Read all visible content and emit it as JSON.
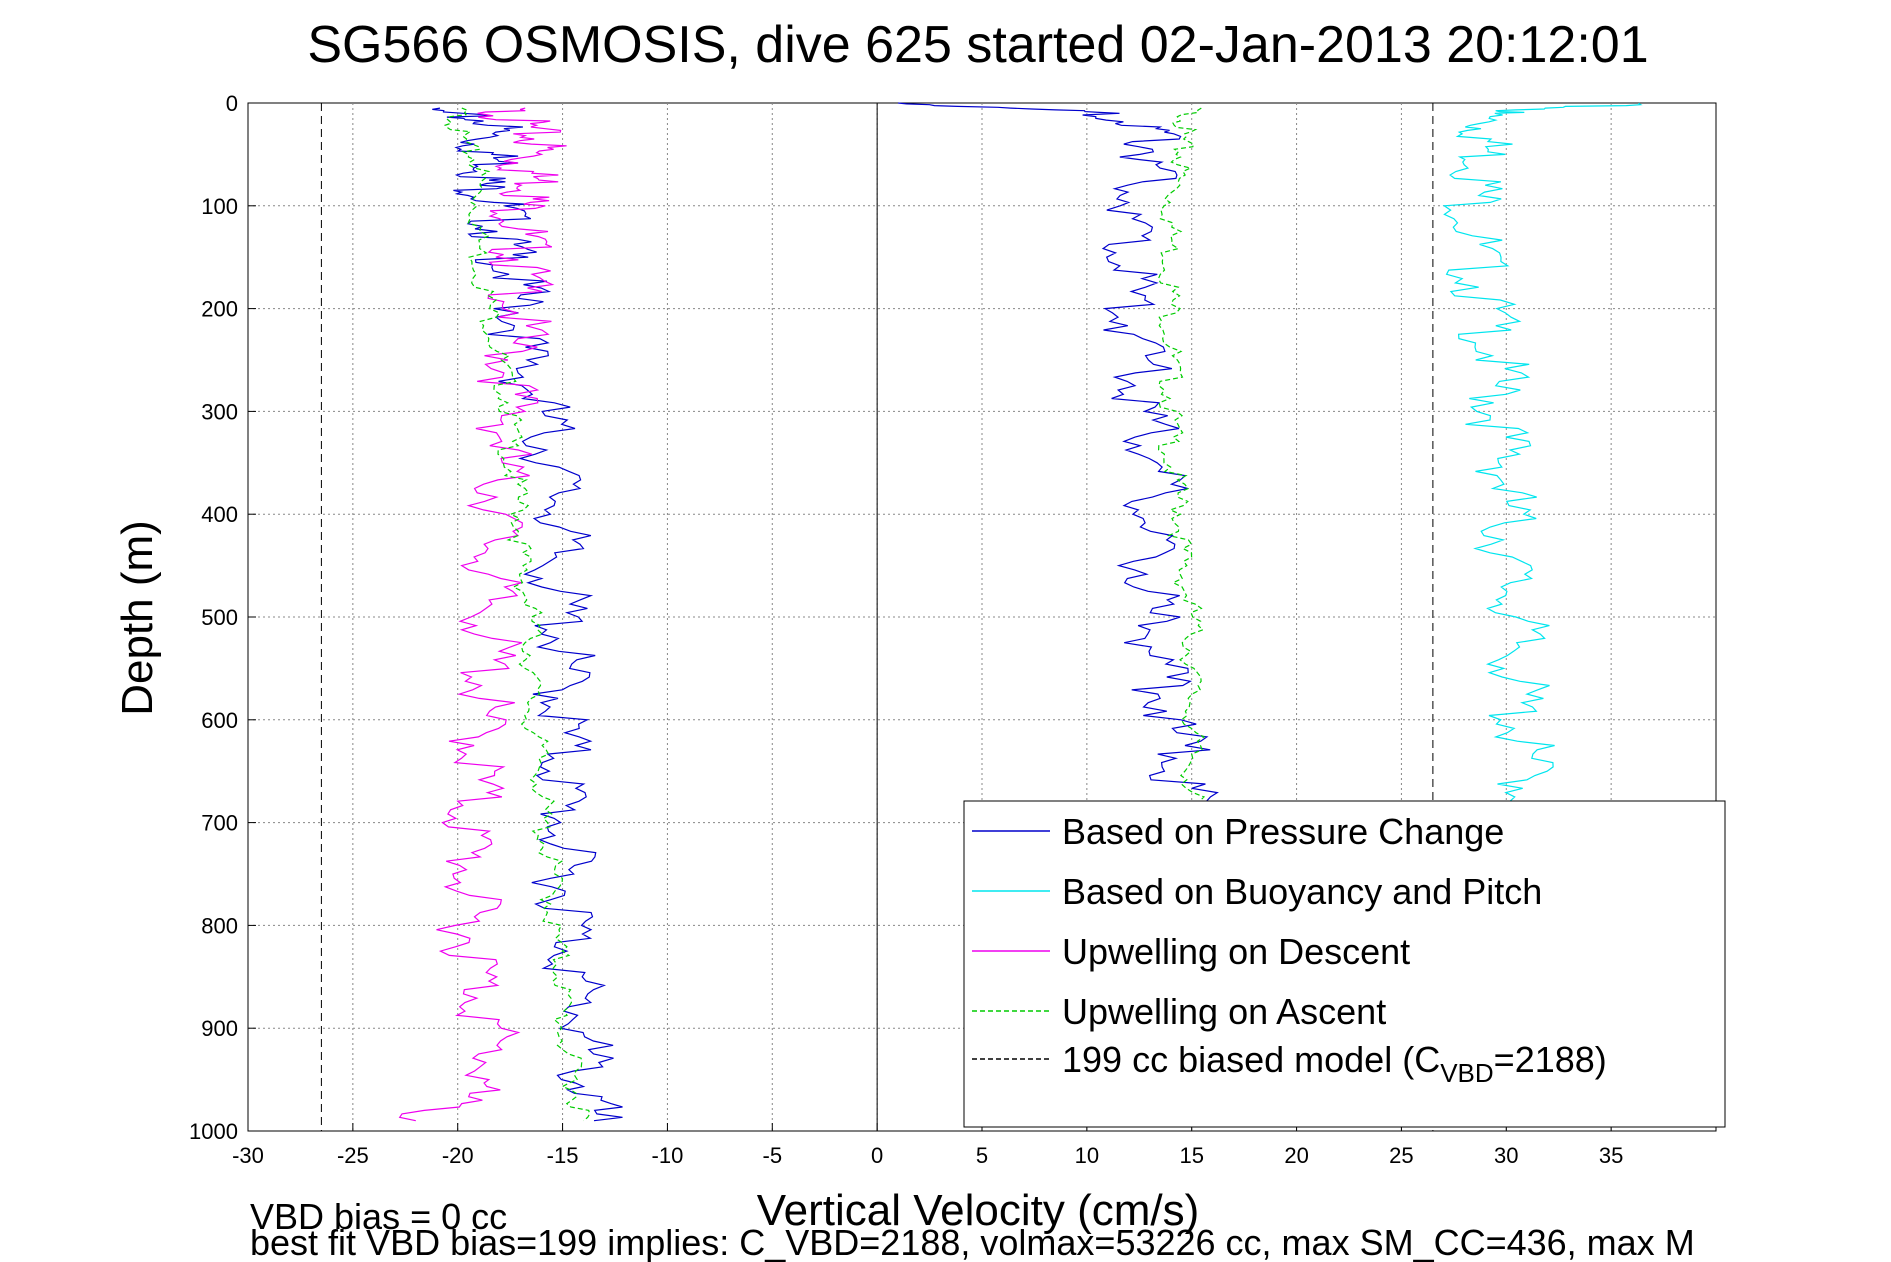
{
  "chart_data": {
    "type": "line",
    "title": "SG566 OSMOSIS, dive 625 started 02-Jan-2013 20:12:01",
    "xlabel": "Vertical Velocity (cm/s)",
    "ylabel": "Depth (m)",
    "xlim": [
      -30,
      40
    ],
    "ylim": [
      0,
      1000
    ],
    "y_reversed": true,
    "xticks": [
      -30,
      -25,
      -20,
      -15,
      -10,
      -5,
      0,
      5,
      10,
      15,
      20,
      25,
      30,
      35
    ],
    "yticks": [
      0,
      100,
      200,
      300,
      400,
      500,
      600,
      700,
      800,
      900,
      1000
    ],
    "grid": true,
    "legend_position": "bottom-right",
    "series": [
      {
        "name": "Based on Pressure Change",
        "color": "#0000cc",
        "style": "solid",
        "segment": "descent",
        "depth": [
          5,
          20,
          40,
          60,
          80,
          100,
          130,
          160,
          200,
          250,
          300,
          350,
          400,
          450,
          500,
          550,
          600,
          650,
          700,
          750,
          800,
          850,
          900,
          950,
          990
        ],
        "values": [
          -22,
          -18,
          -19,
          -18,
          -19,
          -18,
          -18,
          -17.5,
          -17,
          -17,
          -16,
          -15.5,
          -15,
          -15.5,
          -15,
          -15,
          -15,
          -15,
          -15,
          -15,
          -14.5,
          -14.5,
          -14,
          -14,
          -13.5
        ]
      },
      {
        "name": "Based on Pressure Change",
        "color": "#0000cc",
        "style": "solid",
        "segment": "ascent",
        "depth": [
          990,
          950,
          900,
          850,
          800,
          750,
          700,
          650,
          600,
          550,
          500,
          450,
          400,
          350,
          300,
          250,
          200,
          150,
          100,
          60,
          30,
          10,
          0
        ],
        "values": [
          15,
          15,
          15,
          15,
          15,
          15,
          15,
          14.5,
          14,
          13.5,
          13,
          13,
          13,
          13.5,
          12.5,
          12.5,
          12,
          12,
          12,
          13,
          13.5,
          11,
          1
        ]
      },
      {
        "name": "Based on Buoyancy and Pitch",
        "color": "#00e5ee",
        "style": "solid",
        "segment": "descent",
        "depth": [
          0,
          10,
          30,
          60,
          100,
          150,
          200,
          250,
          300,
          350,
          400,
          450,
          500,
          550,
          600,
          650,
          700
        ],
        "values": [
          36,
          29,
          29,
          29,
          28.5,
          28.5,
          29,
          29.5,
          29.5,
          30,
          30,
          30,
          30.5,
          30.5,
          30.5,
          31,
          31
        ]
      },
      {
        "name": "Upwelling on Descent",
        "color": "#ee00ee",
        "style": "solid",
        "depth": [
          5,
          20,
          40,
          60,
          80,
          100,
          130,
          160,
          200,
          250,
          300,
          350,
          400,
          450,
          500,
          550,
          600,
          650,
          700,
          750,
          800,
          850,
          900,
          950,
          990
        ],
        "values": [
          -18,
          -17,
          -16,
          -17,
          -16,
          -17,
          -17,
          -17,
          -17,
          -17.5,
          -17.5,
          -18,
          -18,
          -18.5,
          -18.5,
          -18.5,
          -19,
          -19,
          -19.5,
          -19.5,
          -19.5,
          -19,
          -18.5,
          -18.5,
          -22
        ]
      },
      {
        "name": "Upwelling on Ascent",
        "color": "#00cc00",
        "style": "dashed",
        "depth": [
          5,
          30,
          60,
          100,
          150,
          200,
          250,
          300,
          350,
          400,
          450,
          500,
          550,
          600,
          650,
          700,
          750,
          800,
          850,
          900,
          950,
          990
        ],
        "values": [
          -20,
          -20,
          -19,
          -19,
          -19,
          -18.5,
          -18,
          -17.5,
          -17.5,
          -17,
          -17,
          -16.5,
          -16.5,
          -16.5,
          -16,
          -16,
          -15.5,
          -15.5,
          -15,
          -15,
          -14.5,
          -14
        ],
        "values_mirror": [
          15,
          14.5,
          14.5,
          14,
          14,
          14,
          14,
          14,
          14,
          14.5,
          14.5,
          15,
          15,
          15,
          15,
          15,
          15,
          15,
          15,
          15,
          15,
          15
        ]
      },
      {
        "name": "199 cc biased model (C_VBD=2188)",
        "color": "#000000",
        "style": "dashed",
        "depth": [
          0,
          1000
        ],
        "values_left": -26.5,
        "values_right": 26.5
      }
    ]
  },
  "legend": {
    "entries": [
      {
        "label": "Based on Pressure Change",
        "color": "#0000cc",
        "style": "solid"
      },
      {
        "label": "Based on Buoyancy and Pitch",
        "color": "#00e5ee",
        "style": "solid"
      },
      {
        "label": "Upwelling on Descent",
        "color": "#ee00ee",
        "style": "solid"
      },
      {
        "label": "Upwelling on Ascent",
        "color": "#00cc00",
        "style": "dashed"
      },
      {
        "label_main": "199 cc biased model (C",
        "label_sub": "VBD",
        "label_end": "=2188)",
        "color": "#000000",
        "style": "dashed"
      }
    ]
  },
  "footer": {
    "line1": "VBD bias = 0 cc",
    "line2": "best fit VBD bias=199 implies: C_VBD=2188, volmax=53226 cc, max SM_CC=436, max M"
  }
}
